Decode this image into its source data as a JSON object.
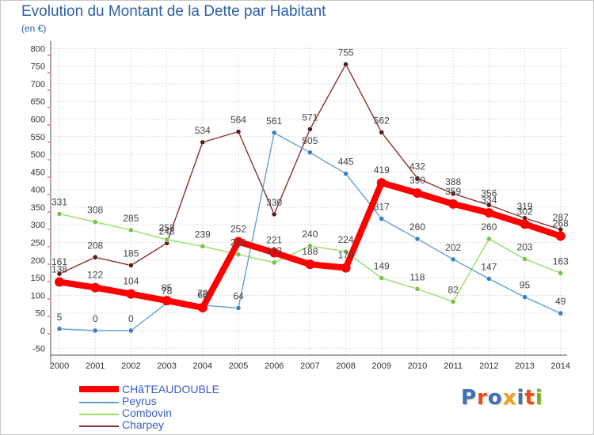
{
  "title": "Evolution du Montant de la Dette par Habitant",
  "subtitle": "(en €)",
  "logo": "Proxiti",
  "colors": {
    "grid": "#dddddd",
    "axis": "#555555",
    "tick_red": "#e83030",
    "logo": [
      "#3b6fc0",
      "#e84a2a",
      "#3b6fc0",
      "#f0a020",
      "#3b6fc0",
      "#e84a2a",
      "#7ab030"
    ]
  },
  "chart_data": {
    "type": "line",
    "title": "Evolution du Montant de la Dette par Habitant",
    "subtitle": "(en €)",
    "xlabel": "",
    "ylabel": "",
    "x": [
      "2000",
      "2001",
      "2002",
      "2003",
      "2004",
      "2005",
      "2006",
      "2007",
      "2008",
      "2009",
      "2010",
      "2011",
      "2012",
      "2013",
      "2014"
    ],
    "ylim": [
      -50,
      800
    ],
    "yticks": [
      -50,
      0,
      50,
      100,
      150,
      200,
      250,
      300,
      350,
      400,
      450,
      500,
      550,
      600,
      650,
      700,
      750,
      800
    ],
    "grid": true,
    "legend_position": "bottom-left",
    "series": [
      {
        "name": "Charpey",
        "color": "#8b2f2f",
        "marker": "#5a1a1a",
        "values": [
          161,
          208,
          185,
          248,
          534,
          564,
          330,
          571,
          755,
          562,
          432,
          388,
          356,
          319,
          287
        ]
      },
      {
        "name": "Combovin",
        "color": "#99dd66",
        "marker": "#7ac04a",
        "values": [
          331,
          308,
          285,
          258,
          239,
          216,
          193,
          240,
          224,
          149,
          118,
          82,
          260,
          203,
          163
        ]
      },
      {
        "name": "Peyrus",
        "color": "#5fa0d8",
        "marker": "#3a7fc0",
        "values": [
          5,
          0,
          0,
          78,
          72,
          64,
          561,
          505,
          445,
          317,
          260,
          202,
          147,
          95,
          49
        ]
      },
      {
        "name": "CHâTEAUDOUBLE",
        "color": "#ff0000",
        "marker": "#ff0000",
        "values": [
          138,
          122,
          104,
          85,
          65,
          252,
          221,
          188,
          178,
          419,
          390,
          359,
          334,
          302,
          268
        ]
      }
    ],
    "value_labels": [
      {
        "x": "2000",
        "text": "161"
      },
      {
        "x": "2001",
        "text": "208"
      },
      {
        "x": "2002",
        "text": "185"
      },
      {
        "x": "2003",
        "text": "248"
      },
      {
        "x": "2004",
        "text": "534"
      },
      {
        "x": "2005",
        "text": "564"
      },
      {
        "x": "2006",
        "text": "330"
      },
      {
        "x": "2007",
        "text": "571"
      },
      {
        "x": "2008",
        "text": "755"
      },
      {
        "x": "2009",
        "text": "562"
      },
      {
        "x": "2010",
        "text": "432"
      },
      {
        "x": "2011",
        "text": "388"
      },
      {
        "x": "2012",
        "text": "356"
      },
      {
        "x": "2013",
        "text": "319"
      },
      {
        "x": "2014",
        "text": "287"
      },
      {
        "x": "2000",
        "text": "331"
      },
      {
        "x": "2001",
        "text": "308"
      },
      {
        "x": "2002",
        "text": "285"
      },
      {
        "x": "2003",
        "text": "258"
      },
      {
        "x": "2004",
        "text": "239"
      },
      {
        "x": "2005",
        "text": "216"
      },
      {
        "x": "2006",
        "text": "193"
      },
      {
        "x": "2007",
        "text": "240"
      },
      {
        "x": "2008",
        "text": "224"
      },
      {
        "x": "2009",
        "text": "149"
      },
      {
        "x": "2010",
        "text": "118"
      },
      {
        "x": "2011",
        "text": "82"
      },
      {
        "x": "2012",
        "text": "260"
      },
      {
        "x": "2013",
        "text": "203"
      },
      {
        "x": "2014",
        "text": "163"
      },
      {
        "x": "2000",
        "text": "5"
      },
      {
        "x": "2001",
        "text": "0"
      },
      {
        "x": "2002",
        "text": "0"
      },
      {
        "x": "2003",
        "text": "78"
      },
      {
        "x": "2004",
        "text": "72"
      },
      {
        "x": "2005",
        "text": "64"
      },
      {
        "x": "2006",
        "text": "561"
      },
      {
        "x": "2007",
        "text": "505"
      },
      {
        "x": "2008",
        "text": "445"
      },
      {
        "x": "2009",
        "text": "317"
      },
      {
        "x": "2010",
        "text": "260"
      },
      {
        "x": "2011",
        "text": "202"
      },
      {
        "x": "2012",
        "text": "147"
      },
      {
        "x": "2013",
        "text": "95"
      },
      {
        "x": "2014",
        "text": "49"
      },
      {
        "x": "2000",
        "text": "138"
      },
      {
        "x": "2001",
        "text": "122"
      },
      {
        "x": "2002",
        "text": "104"
      },
      {
        "x": "2003",
        "text": "85"
      },
      {
        "x": "2004",
        "text": "65"
      },
      {
        "x": "2005",
        "text": "252"
      },
      {
        "x": "2006",
        "text": "221"
      },
      {
        "x": "2007",
        "text": "188"
      },
      {
        "x": "2008",
        "text": "178"
      },
      {
        "x": "2009",
        "text": "419"
      },
      {
        "x": "2010",
        "text": "390"
      },
      {
        "x": "2011",
        "text": "359"
      },
      {
        "x": "2012",
        "text": "334"
      },
      {
        "x": "2013",
        "text": "302"
      },
      {
        "x": "2014",
        "text": "268"
      }
    ]
  },
  "legend": [
    {
      "name": "CHâTEAUDOUBLE",
      "color": "#ff0000",
      "weight": "thick"
    },
    {
      "name": "Peyrus",
      "color": "#5fa0d8",
      "weight": "thin"
    },
    {
      "name": "Combovin",
      "color": "#99dd66",
      "weight": "thin"
    },
    {
      "name": "Charpey",
      "color": "#8b2f2f",
      "weight": "thin"
    }
  ]
}
